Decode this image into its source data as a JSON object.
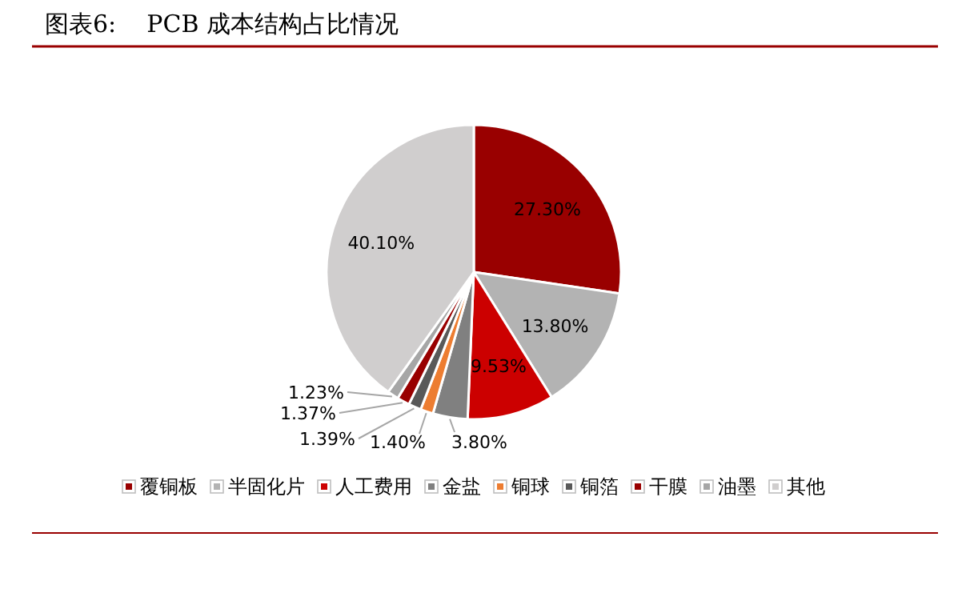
{
  "chart_data": {
    "type": "pie",
    "title": "图表6:    PCB 成本结构占比情况",
    "categories": [
      "覆铜板",
      "半固化片",
      "人工费用",
      "金盐",
      "铜球",
      "铜箔",
      "干膜",
      "油墨",
      "其他"
    ],
    "values": [
      27.3,
      13.8,
      9.53,
      3.8,
      1.4,
      1.39,
      1.37,
      1.23,
      40.1
    ],
    "value_labels": [
      "27.30%",
      "13.80%",
      "9.53%",
      "3.80%",
      "1.40%",
      "1.39%",
      "1.37%",
      "1.23%",
      "40.10%"
    ],
    "colors": [
      "#990000",
      "#b3b3b3",
      "#cc0000",
      "#808080",
      "#ed7d31",
      "#595959",
      "#990000",
      "#a6a6a6",
      "#d0cece"
    ],
    "legend": "bottom"
  }
}
